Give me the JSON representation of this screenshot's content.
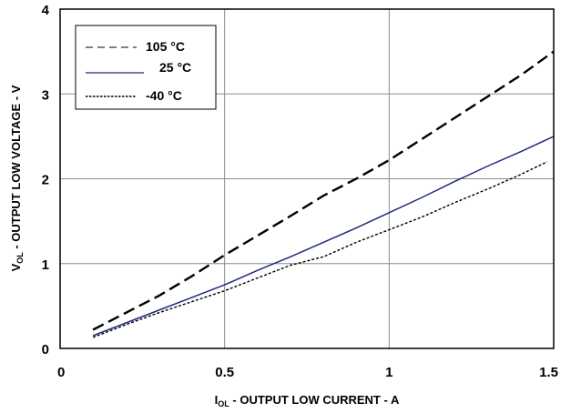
{
  "chart_data": {
    "type": "line",
    "xlabel": {
      "prefix": "I",
      "sub": "OL",
      "rest": " - OUTPUT LOW CURRENT - A"
    },
    "ylabel": {
      "prefix": "V",
      "sub": "OL",
      "rest": " - OUTPUT LOW VOLTAGE - V"
    },
    "xlim": [
      0,
      1.5
    ],
    "ylim": [
      0,
      4
    ],
    "xticks": [
      {
        "value": 0,
        "label": "0"
      },
      {
        "value": 0.5,
        "label": "0.5"
      },
      {
        "value": 1,
        "label": "1"
      },
      {
        "value": 1.5,
        "label": "1.5"
      }
    ],
    "yticks": [
      {
        "value": 0,
        "label": "0"
      },
      {
        "value": 1,
        "label": "1"
      },
      {
        "value": 2,
        "label": "2"
      },
      {
        "value": 3,
        "label": "3"
      },
      {
        "value": 4,
        "label": "4"
      }
    ],
    "grid": true,
    "legend_position": "top-left",
    "series": [
      {
        "name": "105  °C",
        "style": "long-dash",
        "color": "#000000",
        "x": [
          0.1,
          0.2,
          0.3,
          0.4,
          0.5,
          0.6,
          0.7,
          0.8,
          0.9,
          1.0,
          1.1,
          1.2,
          1.3,
          1.4,
          1.5
        ],
        "y": [
          0.22,
          0.42,
          0.62,
          0.85,
          1.1,
          1.33,
          1.56,
          1.8,
          2.0,
          2.22,
          2.47,
          2.72,
          2.97,
          3.22,
          3.5
        ]
      },
      {
        "name": "25 °C",
        "style": "solid",
        "color": "#1f2a7a",
        "x": [
          0.1,
          0.2,
          0.3,
          0.4,
          0.5,
          0.6,
          0.7,
          0.8,
          0.9,
          1.0,
          1.1,
          1.2,
          1.3,
          1.4,
          1.5
        ],
        "y": [
          0.15,
          0.3,
          0.45,
          0.6,
          0.75,
          0.92,
          1.08,
          1.25,
          1.42,
          1.6,
          1.78,
          1.97,
          2.15,
          2.32,
          2.5
        ]
      },
      {
        "name": "-40  °C",
        "style": "short-dash",
        "color": "#000000",
        "x": [
          0.1,
          0.2,
          0.3,
          0.4,
          0.5,
          0.6,
          0.7,
          0.8,
          0.9,
          1.0,
          1.1,
          1.2,
          1.3,
          1.4,
          1.48
        ],
        "y": [
          0.13,
          0.28,
          0.42,
          0.55,
          0.68,
          0.83,
          0.98,
          1.08,
          1.25,
          1.4,
          1.55,
          1.72,
          1.88,
          2.05,
          2.2
        ]
      }
    ]
  }
}
